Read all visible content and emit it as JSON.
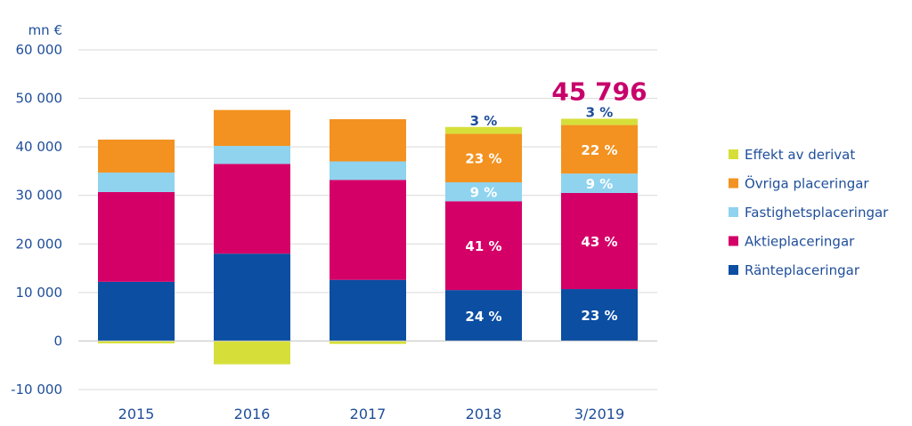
{
  "chart_data": {
    "type": "bar",
    "stacked": true,
    "ylabel": "mn €",
    "ylim": [
      -10000,
      60000
    ],
    "yticks": [
      -10000,
      0,
      10000,
      20000,
      30000,
      40000,
      50000,
      60000
    ],
    "ytick_labels": [
      "-10 000",
      "0",
      "10 000",
      "20 000",
      "30 000",
      "40 000",
      "50 000",
      "60 000"
    ],
    "grid": true,
    "legend_position": "right",
    "categories": [
      "2015",
      "2016",
      "2017",
      "2018",
      "3/2019"
    ],
    "series": [
      {
        "name": "Ränteplaceringar",
        "color": "#0b4ea2",
        "values": [
          12200,
          18000,
          12600,
          10500,
          10700
        ],
        "labels": [
          "",
          "",
          "",
          "24 %",
          "23 %"
        ],
        "label_color": "#ffffff"
      },
      {
        "name": "Aktieplaceringar",
        "color": "#d40068",
        "values": [
          18500,
          18500,
          20600,
          18300,
          19800
        ],
        "labels": [
          "",
          "",
          "",
          "41 %",
          "43 %"
        ],
        "label_color": "#ffffff"
      },
      {
        "name": "Fastighetsplaceringar",
        "color": "#8fd3ef",
        "values": [
          4000,
          3700,
          3800,
          3900,
          4000
        ],
        "labels": [
          "",
          "",
          "",
          "9 %",
          "9 %"
        ],
        "label_color": "#ffffff"
      },
      {
        "name": "Övriga placeringar",
        "color": "#f39220",
        "values": [
          6800,
          7400,
          8700,
          10000,
          10000
        ],
        "labels": [
          "",
          "",
          "",
          "23 %",
          "22 %"
        ],
        "label_color": "#ffffff"
      },
      {
        "name": "Effekt av derivat",
        "color": "#d6df3a",
        "values": [
          -500,
          -4800,
          -600,
          1400,
          1300
        ],
        "labels": [
          "",
          "",
          "",
          "3 %",
          "3 %"
        ],
        "label_color": "#1f4e9a"
      }
    ],
    "annotation": {
      "category": "3/2019",
      "text": "45 796",
      "value": 45796,
      "color": "#c8006b"
    }
  }
}
